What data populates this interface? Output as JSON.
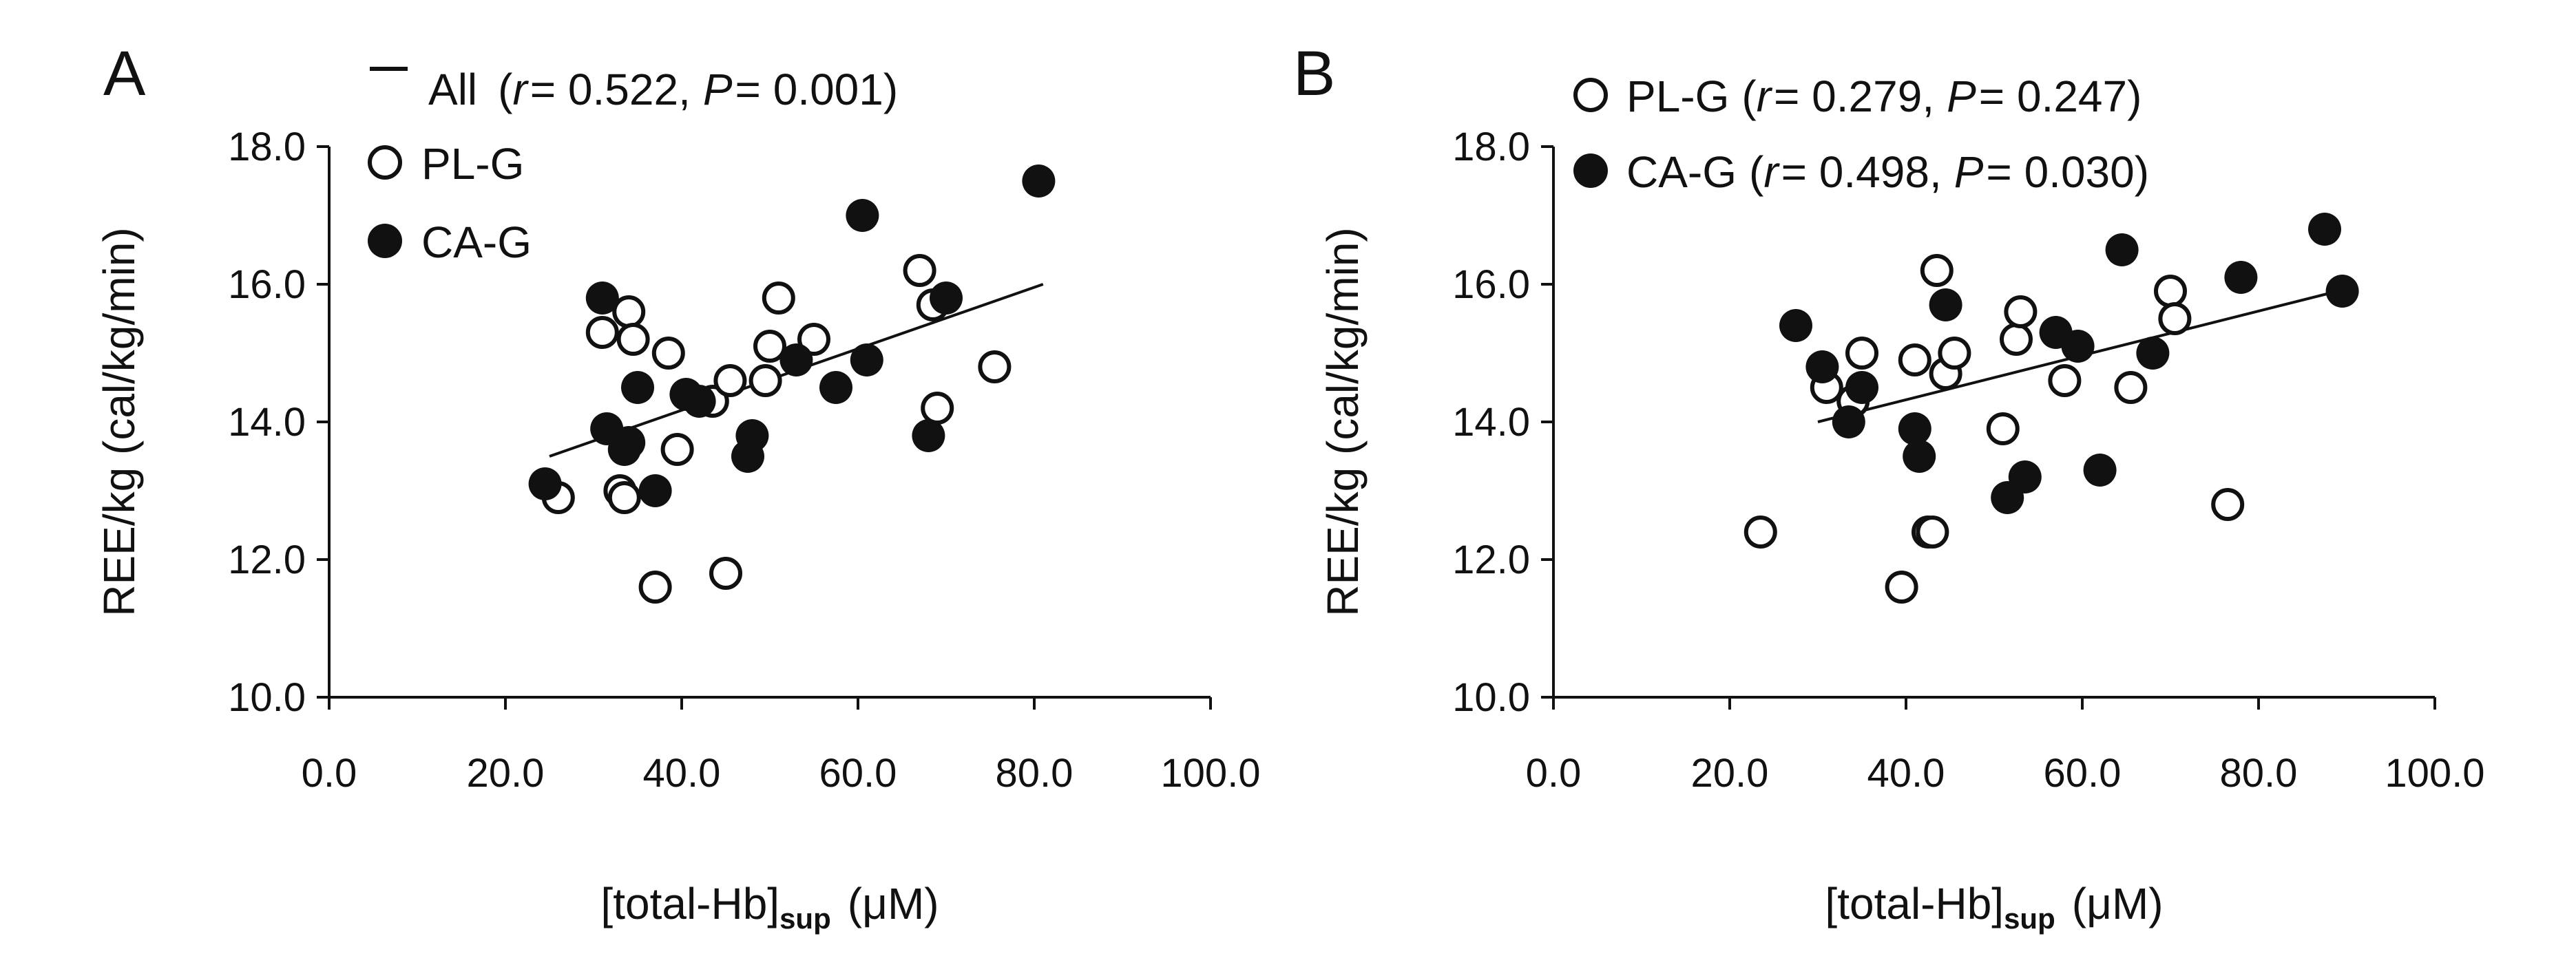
{
  "chart_data": [
    {
      "type": "scatter",
      "panel": "A",
      "xlabel": "[total-Hb]",
      "xlabel_sub": "sup",
      "xlabel_unit": "(μM)",
      "ylabel": "REE/kg (cal/kg/min)",
      "xlim": [
        0,
        100
      ],
      "ylim": [
        10,
        18
      ],
      "x_ticks": [
        "0.0",
        "20.0",
        "40.0",
        "60.0",
        "80.0",
        "100.0"
      ],
      "y_ticks": [
        "10.0",
        "12.0",
        "14.0",
        "16.0",
        "18.0"
      ],
      "legend": {
        "line": {
          "label": "All",
          "r_label": "r",
          "r_value": "= 0.522,",
          "p_label": "P",
          "p_value": "= 0.001)",
          "open_paren": "("
        },
        "series_labels": [
          "PL-G",
          "CA-G"
        ]
      },
      "fit_line": {
        "x": [
          25,
          81
        ],
        "y": [
          13.5,
          16.0
        ]
      },
      "series": [
        {
          "name": "PL-G",
          "marker": "open",
          "points": [
            [
              26,
              12.9
            ],
            [
              31,
              15.3
            ],
            [
              33,
              13.0
            ],
            [
              33.5,
              12.9
            ],
            [
              34,
              15.6
            ],
            [
              34.5,
              15.2
            ],
            [
              37,
              11.6
            ],
            [
              38.5,
              15.0
            ],
            [
              39.5,
              13.6
            ],
            [
              43.5,
              14.3
            ],
            [
              45,
              11.8
            ],
            [
              45.5,
              14.6
            ],
            [
              49.5,
              14.6
            ],
            [
              50,
              15.1
            ],
            [
              51,
              15.8
            ],
            [
              55,
              15.2
            ],
            [
              67,
              16.2
            ],
            [
              68.5,
              15.7
            ],
            [
              69,
              14.2
            ],
            [
              75.5,
              14.8
            ]
          ]
        },
        {
          "name": "CA-G",
          "marker": "filled",
          "points": [
            [
              24.5,
              13.1
            ],
            [
              31,
              15.8
            ],
            [
              31.5,
              13.9
            ],
            [
              33.5,
              13.6
            ],
            [
              34,
              13.7
            ],
            [
              35,
              14.5
            ],
            [
              37,
              13.0
            ],
            [
              40.5,
              14.4
            ],
            [
              42,
              14.3
            ],
            [
              47.5,
              13.5
            ],
            [
              48,
              13.8
            ],
            [
              53,
              14.9
            ],
            [
              57.5,
              14.5
            ],
            [
              60.5,
              17.0
            ],
            [
              61,
              14.9
            ],
            [
              68,
              13.8
            ],
            [
              70,
              15.8
            ],
            [
              80.5,
              17.5
            ]
          ]
        }
      ]
    },
    {
      "type": "scatter",
      "panel": "B",
      "xlabel": "[total-Hb]",
      "xlabel_sub": "sup",
      "xlabel_unit": "(μM)",
      "ylabel": "REE/kg (cal/kg/min)",
      "xlim": [
        0,
        100
      ],
      "ylim": [
        10,
        18
      ],
      "x_ticks": [
        "0.0",
        "20.0",
        "40.0",
        "60.0",
        "80.0",
        "100.0"
      ],
      "y_ticks": [
        "10.0",
        "12.0",
        "14.0",
        "16.0",
        "18.0"
      ],
      "legend": {
        "entries": [
          {
            "name": "PL-G",
            "open_paren": "(",
            "r_label": "r",
            "r_value": "= 0.279,",
            "p_label": "P",
            "p_value": "= 0.247)"
          },
          {
            "name": "CA-G",
            "open_paren": "(",
            "r_label": "r",
            "r_value": "= 0.498,",
            "p_label": "P",
            "p_value": "= 0.030)"
          }
        ]
      },
      "fit_line": {
        "x": [
          30,
          89
        ],
        "y": [
          14.0,
          15.9
        ]
      },
      "series": [
        {
          "name": "PL-G",
          "marker": "open",
          "points": [
            [
              23.5,
              12.4
            ],
            [
              31,
              14.5
            ],
            [
              34,
              14.3
            ],
            [
              35,
              15.0
            ],
            [
              39.5,
              11.6
            ],
            [
              41,
              14.9
            ],
            [
              42.5,
              12.4
            ],
            [
              43,
              12.4
            ],
            [
              43.5,
              16.2
            ],
            [
              44.5,
              14.7
            ],
            [
              45.5,
              15.0
            ],
            [
              51,
              13.9
            ],
            [
              52.5,
              15.2
            ],
            [
              53,
              15.6
            ],
            [
              58,
              14.6
            ],
            [
              65.5,
              14.5
            ],
            [
              70,
              15.9
            ],
            [
              70.5,
              15.5
            ],
            [
              76.5,
              12.8
            ]
          ]
        },
        {
          "name": "CA-G",
          "marker": "filled",
          "points": [
            [
              27.5,
              15.4
            ],
            [
              30.5,
              14.8
            ],
            [
              33.5,
              14.0
            ],
            [
              35,
              14.5
            ],
            [
              41,
              13.9
            ],
            [
              41.5,
              13.5
            ],
            [
              44.5,
              15.7
            ],
            [
              51.5,
              12.9
            ],
            [
              53.5,
              13.2
            ],
            [
              57,
              15.3
            ],
            [
              59.5,
              15.1
            ],
            [
              62,
              13.3
            ],
            [
              64.5,
              16.5
            ],
            [
              68,
              15.0
            ],
            [
              78,
              16.1
            ],
            [
              87.5,
              16.8
            ],
            [
              89.5,
              15.9
            ]
          ]
        }
      ]
    }
  ]
}
